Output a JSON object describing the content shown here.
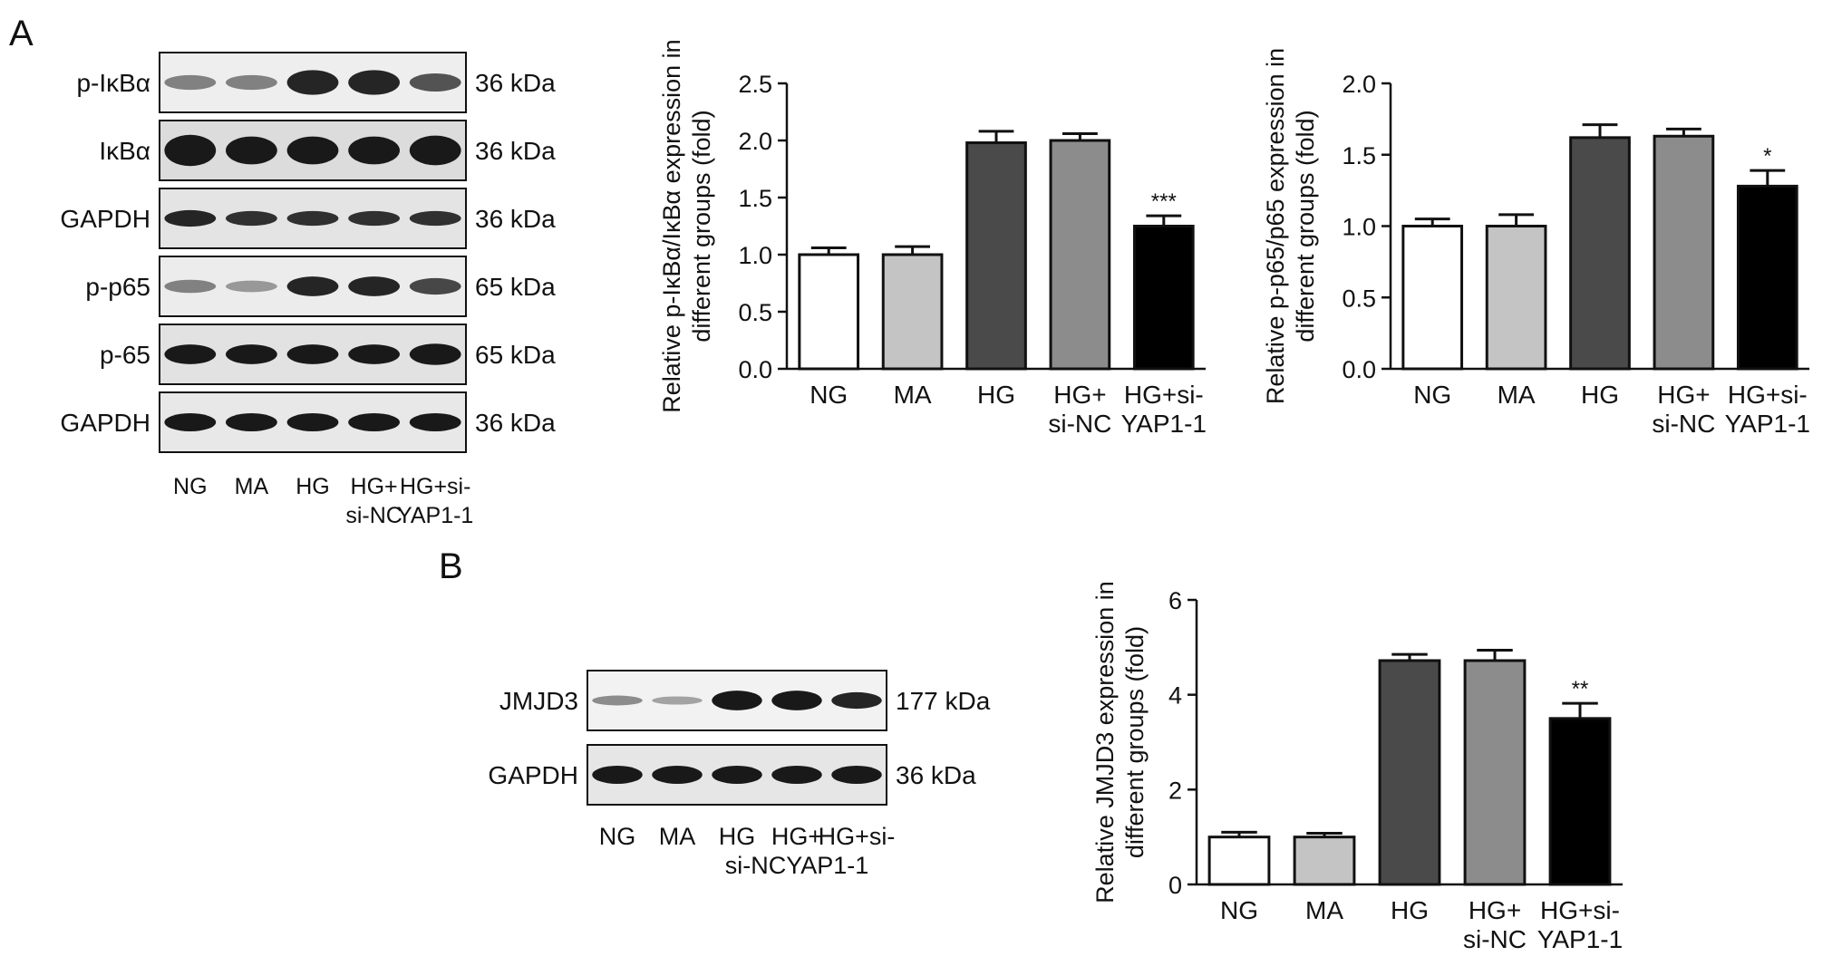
{
  "panels": {
    "A": "A",
    "B": "B"
  },
  "blot_A": {
    "rows": [
      {
        "label": "p-IκBα",
        "size": "36 kDa",
        "intensity": [
          0.55,
          0.55,
          0.95,
          0.95,
          0.75
        ],
        "thickness": [
          0.45,
          0.45,
          0.75,
          0.75,
          0.55
        ],
        "bg": "#eeeeee"
      },
      {
        "label": "IκBα",
        "size": "36 kDa",
        "intensity": [
          1.0,
          1.0,
          1.0,
          1.0,
          1.0
        ],
        "thickness": [
          0.95,
          0.85,
          0.85,
          0.85,
          0.9
        ],
        "bg": "#dcdcdc"
      },
      {
        "label": "GAPDH",
        "size": "36 kDa",
        "intensity": [
          0.95,
          0.9,
          0.9,
          0.9,
          0.9
        ],
        "thickness": [
          0.5,
          0.45,
          0.45,
          0.45,
          0.45
        ],
        "bg": "#e4e4e4"
      },
      {
        "label": "p-p65",
        "size": "65 kDa",
        "intensity": [
          0.55,
          0.45,
          0.95,
          0.95,
          0.8
        ],
        "thickness": [
          0.4,
          0.35,
          0.6,
          0.6,
          0.5
        ],
        "bg": "#ececec"
      },
      {
        "label": "p-65",
        "size": "65 kDa",
        "intensity": [
          1.0,
          1.0,
          1.0,
          1.0,
          1.0
        ],
        "thickness": [
          0.6,
          0.6,
          0.6,
          0.6,
          0.65
        ],
        "bg": "#e2e2e2"
      },
      {
        "label": "GAPDH",
        "size": "36 kDa",
        "intensity": [
          1.0,
          1.0,
          1.0,
          1.0,
          1.0
        ],
        "thickness": [
          0.55,
          0.55,
          0.55,
          0.55,
          0.55
        ],
        "bg": "#e8e8e8"
      }
    ],
    "lane_labels": [
      [
        "NG"
      ],
      [
        "MA"
      ],
      [
        "HG"
      ],
      [
        "HG+",
        "si-NC"
      ],
      [
        "HG+si-",
        "YAP1-1"
      ]
    ]
  },
  "blot_B": {
    "rows": [
      {
        "label": "JMJD3",
        "size": "177 kDa",
        "intensity": [
          0.5,
          0.4,
          1.0,
          1.0,
          0.95
        ],
        "thickness": [
          0.3,
          0.25,
          0.6,
          0.6,
          0.5
        ],
        "bg": "#f2f2f2"
      },
      {
        "label": "GAPDH",
        "size": "36 kDa",
        "intensity": [
          1.0,
          1.0,
          1.0,
          1.0,
          1.0
        ],
        "thickness": [
          0.55,
          0.55,
          0.55,
          0.55,
          0.55
        ],
        "bg": "#e6e6e6"
      }
    ],
    "lane_labels": [
      [
        "NG"
      ],
      [
        "MA"
      ],
      [
        "HG"
      ],
      [
        "HG+",
        "si-NC"
      ],
      [
        "HG+si-",
        "YAP1-1"
      ]
    ],
    "lane_label_line2": "si-NCYAP1-1"
  },
  "chart_data": [
    {
      "type": "bar",
      "categories": [
        [
          "NG"
        ],
        [
          "MA"
        ],
        [
          "HG"
        ],
        [
          "HG+",
          "si-NC"
        ],
        [
          "HG+si-",
          "YAP1-1"
        ]
      ],
      "values": [
        1.0,
        1.0,
        1.98,
        2.0,
        1.25
      ],
      "errors": [
        0.06,
        0.07,
        0.1,
        0.06,
        0.09
      ],
      "significance": [
        "",
        "",
        "",
        "",
        "***"
      ],
      "colors": [
        "#ffffff",
        "#c4c4c4",
        "#4a4a4a",
        "#8c8c8c",
        "#000000"
      ],
      "ylabel_lines": [
        "Relative p-IκBα/IκBα expression in",
        "different groups (fold)"
      ],
      "ylim": [
        0,
        2.5
      ],
      "yticks": [
        "0.0",
        "0.5",
        "1.0",
        "1.5",
        "2.0",
        "2.5"
      ]
    },
    {
      "type": "bar",
      "categories": [
        [
          "NG"
        ],
        [
          "MA"
        ],
        [
          "HG"
        ],
        [
          "HG+",
          "si-NC"
        ],
        [
          "HG+si-",
          "YAP1-1"
        ]
      ],
      "values": [
        1.0,
        1.0,
        1.62,
        1.63,
        1.28
      ],
      "errors": [
        0.05,
        0.08,
        0.09,
        0.05,
        0.11
      ],
      "significance": [
        "",
        "",
        "",
        "",
        "*"
      ],
      "colors": [
        "#ffffff",
        "#c4c4c4",
        "#4a4a4a",
        "#8c8c8c",
        "#000000"
      ],
      "ylabel_lines": [
        "Relative p-p65/p65 expression in",
        "different groups (fold)"
      ],
      "ylim": [
        0,
        2.0
      ],
      "yticks": [
        "0.0",
        "0.5",
        "1.0",
        "1.5",
        "2.0"
      ]
    },
    {
      "type": "bar",
      "categories": [
        [
          "NG"
        ],
        [
          "MA"
        ],
        [
          "HG"
        ],
        [
          "HG+",
          "si-NC"
        ],
        [
          "HG+si-",
          "YAP1-1"
        ]
      ],
      "values": [
        1.0,
        1.0,
        4.72,
        4.72,
        3.5
      ],
      "errors": [
        0.1,
        0.08,
        0.13,
        0.22,
        0.32
      ],
      "significance": [
        "",
        "",
        "",
        "",
        "**"
      ],
      "colors": [
        "#ffffff",
        "#c4c4c4",
        "#4a4a4a",
        "#8c8c8c",
        "#000000"
      ],
      "ylabel_lines": [
        "Relative JMJD3 expression in",
        "different groups (fold)"
      ],
      "ylim": [
        0,
        6
      ],
      "yticks": [
        "0",
        "2",
        "4",
        "6"
      ]
    }
  ]
}
